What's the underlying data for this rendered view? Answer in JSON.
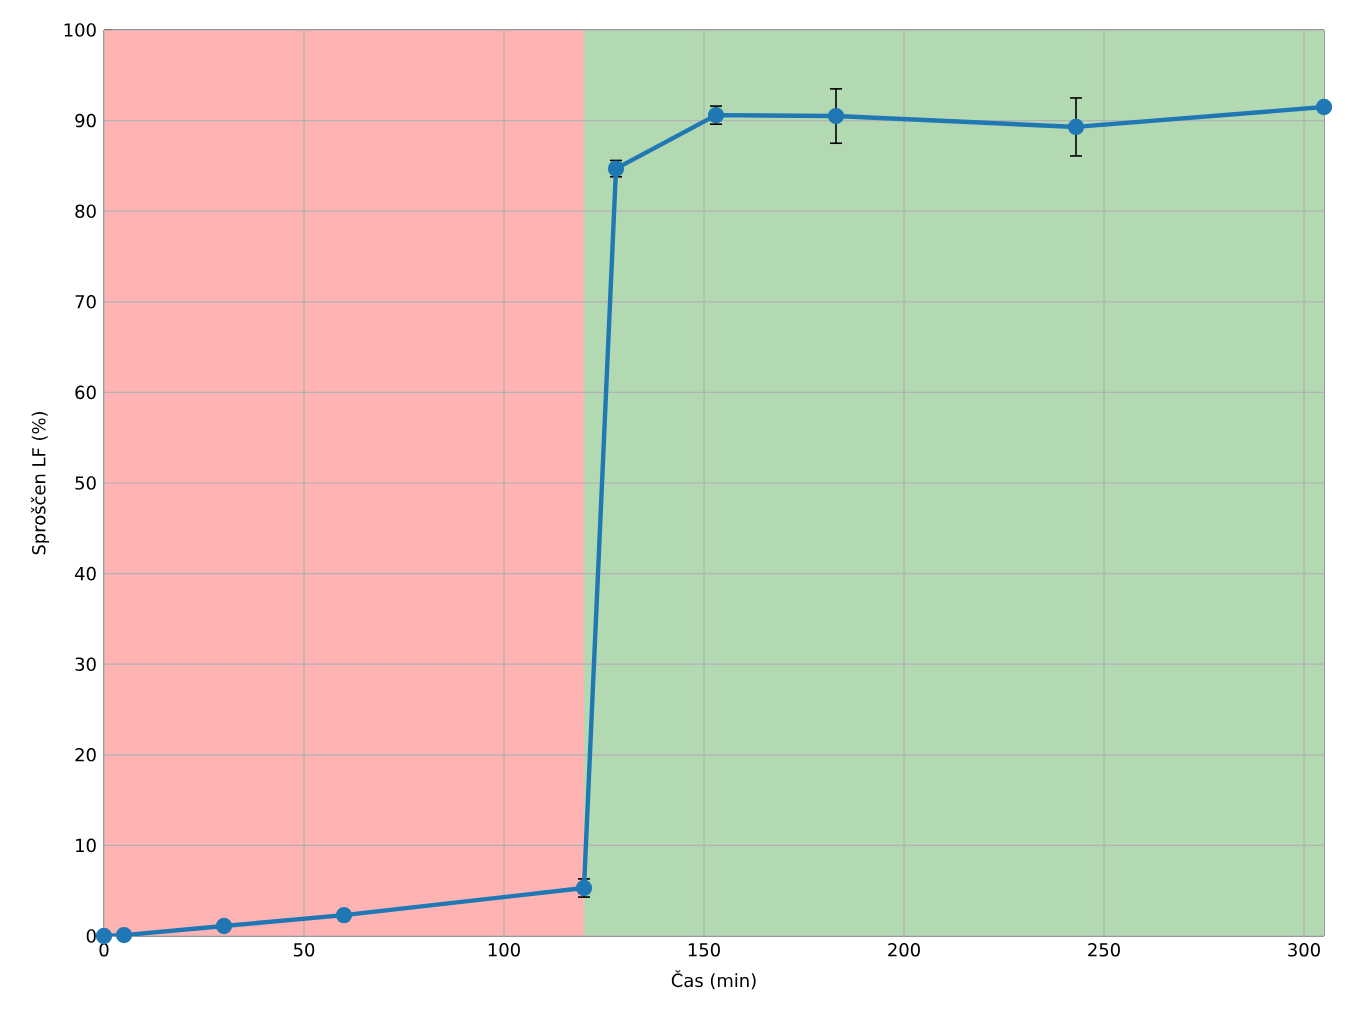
{
  "chart_data": {
    "type": "line",
    "xlabel": "Čas (min)",
    "ylabel": "Sproščen LF (%)",
    "x": [
      0,
      5,
      30,
      60,
      120,
      128,
      153,
      183,
      243,
      305
    ],
    "series": [
      {
        "color": "#1f77b4",
        "values": [
          0,
          0.1,
          1.1,
          2.3,
          5.3,
          84.7,
          90.6,
          90.5,
          89.3,
          91.5
        ],
        "errors": [
          null,
          null,
          null,
          null,
          1.0,
          0.9,
          1.0,
          3.0,
          3.2,
          null
        ]
      }
    ],
    "xlim": [
      0,
      305
    ],
    "ylim": [
      0,
      100
    ],
    "xticks": [
      0,
      50,
      100,
      150,
      200,
      250,
      300
    ],
    "yticks": [
      0,
      10,
      20,
      30,
      40,
      50,
      60,
      70,
      80,
      90,
      100
    ],
    "grid": true,
    "marker": "circle",
    "line_style": "solid",
    "bands": [
      {
        "axis": "x",
        "from": 0,
        "to": 120,
        "color": "#ffb3b3"
      },
      {
        "axis": "x",
        "from": 120,
        "to": 305,
        "color": "#b3d9b3"
      }
    ]
  }
}
